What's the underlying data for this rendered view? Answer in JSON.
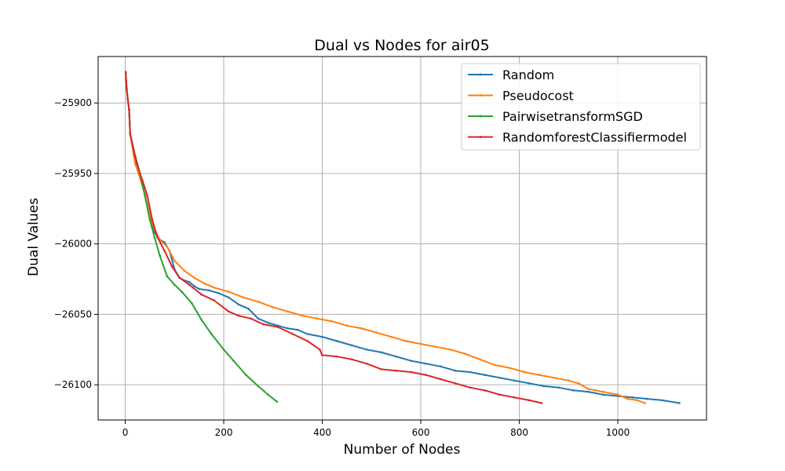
{
  "chart_data": {
    "type": "line",
    "title": "Dual vs Nodes for air05",
    "xlabel": "Number of Nodes",
    "ylabel": "Dual Values",
    "xlim": [
      -55,
      1180
    ],
    "ylim": [
      -26125,
      -25867
    ],
    "xticks": [
      0,
      200,
      400,
      600,
      800,
      1000
    ],
    "yticks": [
      -25900,
      -25950,
      -26000,
      -26050,
      -26100
    ],
    "xtick_labels": [
      "0",
      "200",
      "400",
      "600",
      "800",
      "1000"
    ],
    "ytick_labels": [
      "−25900",
      "−25950",
      "−26000",
      "−26050",
      "−26100"
    ],
    "grid": true,
    "legend_position": "top-right",
    "series": [
      {
        "name": "Random",
        "color": "#1f77b4",
        "points": [
          [
            1,
            -25878
          ],
          [
            3,
            -25890
          ],
          [
            5,
            -25897
          ],
          [
            8,
            -25905
          ],
          [
            10,
            -25922
          ],
          [
            20,
            -25940
          ],
          [
            30,
            -25952
          ],
          [
            40,
            -25965
          ],
          [
            50,
            -25980
          ],
          [
            60,
            -25992
          ],
          [
            70,
            -25997
          ],
          [
            80,
            -25999
          ],
          [
            90,
            -26005
          ],
          [
            100,
            -26018
          ],
          [
            110,
            -26024
          ],
          [
            120,
            -26026
          ],
          [
            130,
            -26027
          ],
          [
            140,
            -26030
          ],
          [
            150,
            -26032
          ],
          [
            170,
            -26033
          ],
          [
            190,
            -26035
          ],
          [
            210,
            -26038
          ],
          [
            230,
            -26043
          ],
          [
            250,
            -26046
          ],
          [
            270,
            -26053
          ],
          [
            290,
            -26056
          ],
          [
            310,
            -26058
          ],
          [
            330,
            -26060
          ],
          [
            350,
            -26061
          ],
          [
            370,
            -26064
          ],
          [
            400,
            -26066
          ],
          [
            430,
            -26069
          ],
          [
            460,
            -26072
          ],
          [
            490,
            -26075
          ],
          [
            520,
            -26077
          ],
          [
            550,
            -26080
          ],
          [
            580,
            -26083
          ],
          [
            610,
            -26085
          ],
          [
            640,
            -26087
          ],
          [
            670,
            -26090
          ],
          [
            700,
            -26091
          ],
          [
            730,
            -26093
          ],
          [
            760,
            -26095
          ],
          [
            790,
            -26097
          ],
          [
            820,
            -26099
          ],
          [
            850,
            -26101
          ],
          [
            880,
            -26102
          ],
          [
            910,
            -26104
          ],
          [
            940,
            -26105
          ],
          [
            970,
            -26107
          ],
          [
            1000,
            -26108
          ],
          [
            1030,
            -26109
          ],
          [
            1060,
            -26110
          ],
          [
            1090,
            -26111
          ],
          [
            1125,
            -26113
          ]
        ]
      },
      {
        "name": " Pseudocost",
        "color": "#ff7f0e",
        "points": [
          [
            1,
            -25878
          ],
          [
            3,
            -25890
          ],
          [
            5,
            -25897
          ],
          [
            8,
            -25905
          ],
          [
            10,
            -25922
          ],
          [
            20,
            -25943
          ],
          [
            30,
            -25953
          ],
          [
            40,
            -25965
          ],
          [
            50,
            -25980
          ],
          [
            60,
            -25990
          ],
          [
            70,
            -25997
          ],
          [
            85,
            -26002
          ],
          [
            100,
            -26012
          ],
          [
            120,
            -26019
          ],
          [
            140,
            -26024
          ],
          [
            160,
            -26028
          ],
          [
            180,
            -26031
          ],
          [
            210,
            -26034
          ],
          [
            240,
            -26038
          ],
          [
            270,
            -26041
          ],
          [
            300,
            -26045
          ],
          [
            330,
            -26048
          ],
          [
            360,
            -26051
          ],
          [
            390,
            -26053
          ],
          [
            420,
            -26055
          ],
          [
            450,
            -26058
          ],
          [
            480,
            -26060
          ],
          [
            510,
            -26063
          ],
          [
            540,
            -26066
          ],
          [
            570,
            -26069
          ],
          [
            600,
            -26071
          ],
          [
            630,
            -26073
          ],
          [
            660,
            -26075
          ],
          [
            690,
            -26078
          ],
          [
            720,
            -26082
          ],
          [
            750,
            -26086
          ],
          [
            780,
            -26088
          ],
          [
            810,
            -26091
          ],
          [
            840,
            -26093
          ],
          [
            870,
            -26095
          ],
          [
            900,
            -26097
          ],
          [
            920,
            -26099
          ],
          [
            940,
            -26103
          ],
          [
            970,
            -26105
          ],
          [
            1000,
            -26107
          ],
          [
            1020,
            -26110
          ],
          [
            1040,
            -26111
          ],
          [
            1055,
            -26113
          ]
        ]
      },
      {
        "name": "PairwisetransformSGD",
        "color": "#2ca02c",
        "points": [
          [
            1,
            -25878
          ],
          [
            3,
            -25890
          ],
          [
            5,
            -25897
          ],
          [
            8,
            -25905
          ],
          [
            10,
            -25922
          ],
          [
            20,
            -25937
          ],
          [
            30,
            -25950
          ],
          [
            40,
            -25966
          ],
          [
            50,
            -25983
          ],
          [
            60,
            -25996
          ],
          [
            70,
            -26008
          ],
          [
            85,
            -26023
          ],
          [
            100,
            -26029
          ],
          [
            115,
            -26034
          ],
          [
            135,
            -26042
          ],
          [
            155,
            -26054
          ],
          [
            175,
            -26064
          ],
          [
            200,
            -26075
          ],
          [
            220,
            -26083
          ],
          [
            245,
            -26093
          ],
          [
            270,
            -26101
          ],
          [
            290,
            -26107
          ],
          [
            308,
            -26112
          ]
        ]
      },
      {
        "name": "RandomforestClassifiermodel",
        "color": "#d62728",
        "points": [
          [
            1,
            -25878
          ],
          [
            3,
            -25890
          ],
          [
            5,
            -25897
          ],
          [
            8,
            -25905
          ],
          [
            10,
            -25922
          ],
          [
            20,
            -25938
          ],
          [
            30,
            -25950
          ],
          [
            35,
            -25955
          ],
          [
            45,
            -25966
          ],
          [
            55,
            -25983
          ],
          [
            65,
            -25995
          ],
          [
            80,
            -26005
          ],
          [
            95,
            -26016
          ],
          [
            110,
            -26024
          ],
          [
            130,
            -26029
          ],
          [
            155,
            -26036
          ],
          [
            180,
            -26040
          ],
          [
            210,
            -26048
          ],
          [
            230,
            -26051
          ],
          [
            255,
            -26053
          ],
          [
            280,
            -26057
          ],
          [
            310,
            -26059
          ],
          [
            340,
            -26064
          ],
          [
            370,
            -26069
          ],
          [
            395,
            -26075
          ],
          [
            400,
            -26079
          ],
          [
            430,
            -26080
          ],
          [
            460,
            -26082
          ],
          [
            490,
            -26085
          ],
          [
            520,
            -26089
          ],
          [
            550,
            -26090
          ],
          [
            580,
            -26091
          ],
          [
            610,
            -26093
          ],
          [
            640,
            -26096
          ],
          [
            670,
            -26099
          ],
          [
            700,
            -26102
          ],
          [
            730,
            -26104
          ],
          [
            760,
            -26107
          ],
          [
            790,
            -26109
          ],
          [
            820,
            -26111
          ],
          [
            845,
            -26113
          ]
        ]
      }
    ]
  }
}
